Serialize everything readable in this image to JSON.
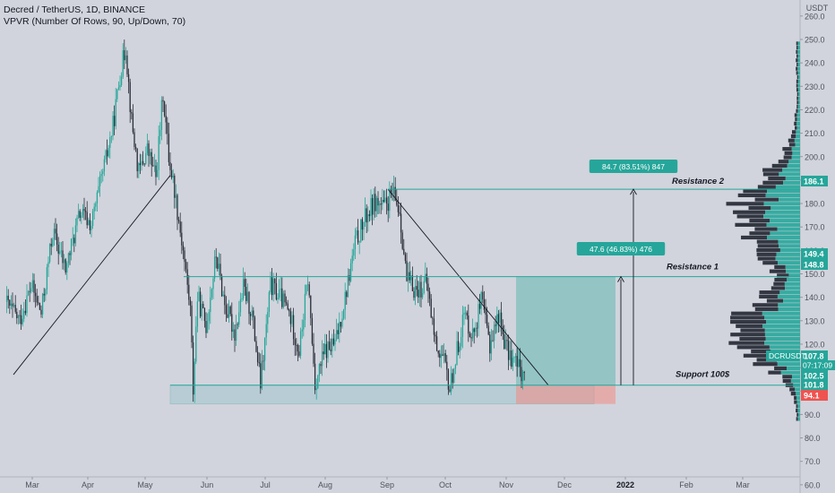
{
  "header": {
    "symbol_line": "Decred / TetherUS, 1D, BINANCE",
    "indicator_line": "VPVR (Number Of Rows, 90, Up/Down, 70)"
  },
  "colors": {
    "background": "#d1d4dc",
    "up": "#26a69a",
    "down": "#2a2e39",
    "line": "#26a69a",
    "label_red": "#ef5350"
  },
  "chart_data": {
    "type": "candlestick",
    "exchange": "BINANCE",
    "timeframe": "1D",
    "y_unit": "USDT",
    "ylim": [
      55,
      265
    ],
    "y_ticks": [
      60,
      70,
      80,
      90,
      100,
      110,
      120,
      130,
      140,
      150,
      160,
      170,
      180,
      190,
      200,
      210,
      220,
      230,
      240,
      250,
      260
    ],
    "x_ticks": [
      "Mar",
      "Apr",
      "May",
      "Jun",
      "Jul",
      "Aug",
      "Sep",
      "Oct",
      "Nov",
      "Dec",
      "2022",
      "Feb",
      "Mar"
    ],
    "price_path": [
      {
        "t": 0,
        "p": 138
      },
      {
        "t": 10,
        "p": 130
      },
      {
        "t": 18,
        "p": 145
      },
      {
        "t": 25,
        "p": 133
      },
      {
        "t": 33,
        "p": 168
      },
      {
        "t": 42,
        "p": 152
      },
      {
        "t": 52,
        "p": 176
      },
      {
        "t": 60,
        "p": 171
      },
      {
        "t": 68,
        "p": 193
      },
      {
        "t": 75,
        "p": 213
      },
      {
        "t": 80,
        "p": 235
      },
      {
        "t": 84,
        "p": 247
      },
      {
        "t": 88,
        "p": 215
      },
      {
        "t": 93,
        "p": 193
      },
      {
        "t": 99,
        "p": 203
      },
      {
        "t": 105,
        "p": 191
      },
      {
        "t": 110,
        "p": 227
      },
      {
        "t": 114,
        "p": 200
      },
      {
        "t": 118,
        "p": 186
      },
      {
        "t": 124,
        "p": 160
      },
      {
        "t": 129,
        "p": 135
      },
      {
        "t": 131,
        "p": 101
      },
      {
        "t": 134,
        "p": 140
      },
      {
        "t": 140,
        "p": 128
      },
      {
        "t": 147,
        "p": 158
      },
      {
        "t": 153,
        "p": 137
      },
      {
        "t": 160,
        "p": 125
      },
      {
        "t": 166,
        "p": 144
      },
      {
        "t": 172,
        "p": 133
      },
      {
        "t": 178,
        "p": 103
      },
      {
        "t": 185,
        "p": 145
      },
      {
        "t": 192,
        "p": 140
      },
      {
        "t": 198,
        "p": 133
      },
      {
        "t": 205,
        "p": 117
      },
      {
        "t": 211,
        "p": 148
      },
      {
        "t": 216,
        "p": 103
      },
      {
        "t": 223,
        "p": 117
      },
      {
        "t": 230,
        "p": 120
      },
      {
        "t": 237,
        "p": 140
      },
      {
        "t": 244,
        "p": 163
      },
      {
        "t": 252,
        "p": 175
      },
      {
        "t": 258,
        "p": 181
      },
      {
        "t": 264,
        "p": 178
      },
      {
        "t": 270,
        "p": 184
      },
      {
        "t": 275,
        "p": 177
      },
      {
        "t": 280,
        "p": 147
      },
      {
        "t": 287,
        "p": 143
      },
      {
        "t": 294,
        "p": 146
      },
      {
        "t": 300,
        "p": 121
      },
      {
        "t": 306,
        "p": 112
      },
      {
        "t": 310,
        "p": 101
      },
      {
        "t": 315,
        "p": 117
      },
      {
        "t": 320,
        "p": 133
      },
      {
        "t": 326,
        "p": 124
      },
      {
        "t": 332,
        "p": 138
      },
      {
        "t": 338,
        "p": 120
      },
      {
        "t": 344,
        "p": 133
      },
      {
        "t": 350,
        "p": 117
      },
      {
        "t": 356,
        "p": 112
      },
      {
        "t": 362,
        "p": 107
      }
    ],
    "horizontal_levels": [
      {
        "price": 186.1,
        "label": "Resistance 2"
      },
      {
        "price": 148.8,
        "label": "Resistance 1"
      },
      {
        "price": 102.5,
        "label": "Support 100$"
      }
    ],
    "measure_labels": [
      "84.7 (83.51%) 847",
      "47.6 (46.83%) 476"
    ],
    "price_labels": [
      {
        "value": "186.1",
        "color": "#26a69a"
      },
      {
        "value": "149.4",
        "color": "#26a69a"
      },
      {
        "value": "148.8",
        "color": "#26a69a"
      },
      {
        "value": "107.8",
        "color": "#26a69a"
      },
      {
        "value": "102.5",
        "color": "#26a69a"
      },
      {
        "value": "101.8",
        "color": "#26a69a"
      },
      {
        "value": "94.1",
        "color": "#ef5350"
      }
    ],
    "current": {
      "ticker": "DCRUSDT",
      "price": "107.8",
      "countdown": "07:17:09"
    }
  }
}
